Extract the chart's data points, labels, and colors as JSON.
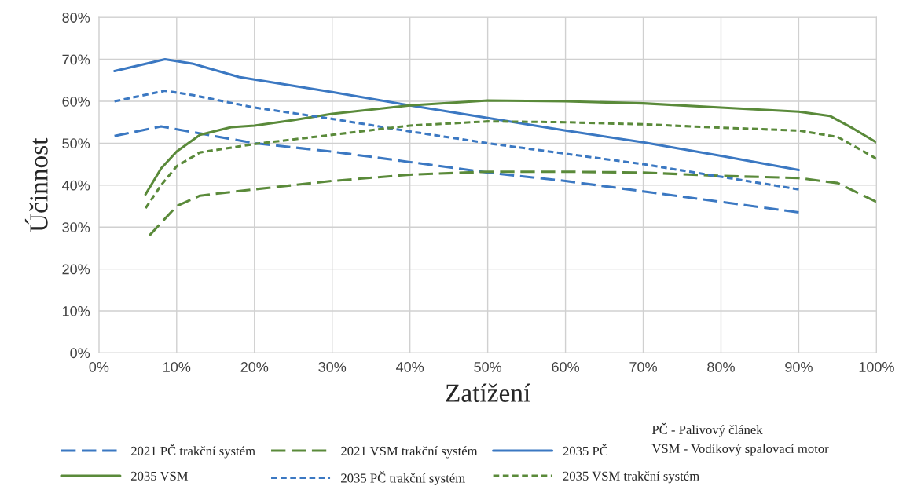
{
  "chart_data": {
    "type": "line",
    "xlabel": "Zatížení",
    "ylabel": "Účinnost",
    "annotations": [
      "PČ - Palivový článek",
      "VSM - Vodíkový spalovací motor"
    ],
    "series": [
      {
        "name": "2021 PČ trakční systém",
        "color": "#3b78c2",
        "line_style": "dashed",
        "x": [
          2,
          8,
          20,
          30,
          40,
          50,
          60,
          70,
          80,
          90
        ],
        "values": [
          51.7,
          54,
          50,
          48,
          45.5,
          43,
          41,
          38.5,
          36,
          33.5
        ]
      },
      {
        "name": "2021 VSM trakční systém",
        "color": "#5a8a3a",
        "line_style": "dashed",
        "x": [
          6.5,
          10,
          13,
          20,
          30,
          40,
          50,
          60,
          70,
          80,
          90,
          95,
          100
        ],
        "values": [
          28,
          35,
          37.5,
          39,
          41,
          42.5,
          43.2,
          43.2,
          43,
          42.2,
          41.7,
          40.5,
          36
        ]
      },
      {
        "name": "2035 PČ",
        "color": "#3b78c2",
        "line_style": "solid",
        "x": [
          2,
          8.5,
          12,
          18,
          20,
          30,
          40,
          50,
          60,
          70,
          80,
          90
        ],
        "values": [
          67.2,
          70,
          69,
          65.8,
          65.2,
          62.2,
          59,
          56,
          53,
          50.2,
          47,
          43.6
        ]
      },
      {
        "name": "2035 VSM",
        "color": "#5a8a3a",
        "line_style": "solid",
        "x": [
          6,
          8,
          10,
          13,
          17,
          20,
          25,
          30,
          40,
          50,
          60,
          70,
          80,
          90,
          94,
          97,
          100
        ],
        "values": [
          37.8,
          44,
          48,
          52,
          53.8,
          54.2,
          55.5,
          57,
          59,
          60.2,
          60,
          59.5,
          58.5,
          57.5,
          56.5,
          53.5,
          50.2
        ]
      },
      {
        "name": "2035 PČ trakční systém",
        "color": "#3b78c2",
        "line_style": "dotted",
        "x": [
          2,
          8.5,
          12,
          20,
          30,
          40,
          50,
          60,
          70,
          80,
          90
        ],
        "values": [
          60,
          62.5,
          61.5,
          58.5,
          55.8,
          52.8,
          50,
          47.5,
          45,
          42,
          39
        ]
      },
      {
        "name": "2035 VSM trakční systém",
        "color": "#5a8a3a",
        "line_style": "dotted",
        "x": [
          6,
          8,
          10,
          13,
          20,
          30,
          40,
          50,
          60,
          70,
          80,
          90,
          95,
          100
        ],
        "values": [
          34.5,
          40,
          44.5,
          47.8,
          49.8,
          52,
          54.2,
          55.2,
          55,
          54.5,
          53.7,
          53,
          51.5,
          46.3
        ]
      }
    ],
    "xlim": [
      0,
      100
    ],
    "ylim": [
      0,
      80
    ],
    "xticks": [
      {
        "value": 0,
        "label": "0%"
      },
      {
        "value": 10,
        "label": "10%"
      },
      {
        "value": 20,
        "label": "20%"
      },
      {
        "value": 30,
        "label": "30%"
      },
      {
        "value": 40,
        "label": "40%"
      },
      {
        "value": 50,
        "label": "50%"
      },
      {
        "value": 60,
        "label": "60%"
      },
      {
        "value": 70,
        "label": "70%"
      },
      {
        "value": 80,
        "label": "80%"
      },
      {
        "value": 90,
        "label": "90%"
      },
      {
        "value": 100,
        "label": "100%"
      }
    ],
    "yticks": [
      {
        "value": 0,
        "label": "0%"
      },
      {
        "value": 10,
        "label": "10%"
      },
      {
        "value": 20,
        "label": "20%"
      },
      {
        "value": 30,
        "label": "30%"
      },
      {
        "value": 40,
        "label": "40%"
      },
      {
        "value": 50,
        "label": "50%"
      },
      {
        "value": 60,
        "label": "60%"
      },
      {
        "value": 70,
        "label": "70%"
      },
      {
        "value": 80,
        "label": "80%"
      }
    ],
    "grid": true,
    "legend": "bottom"
  }
}
